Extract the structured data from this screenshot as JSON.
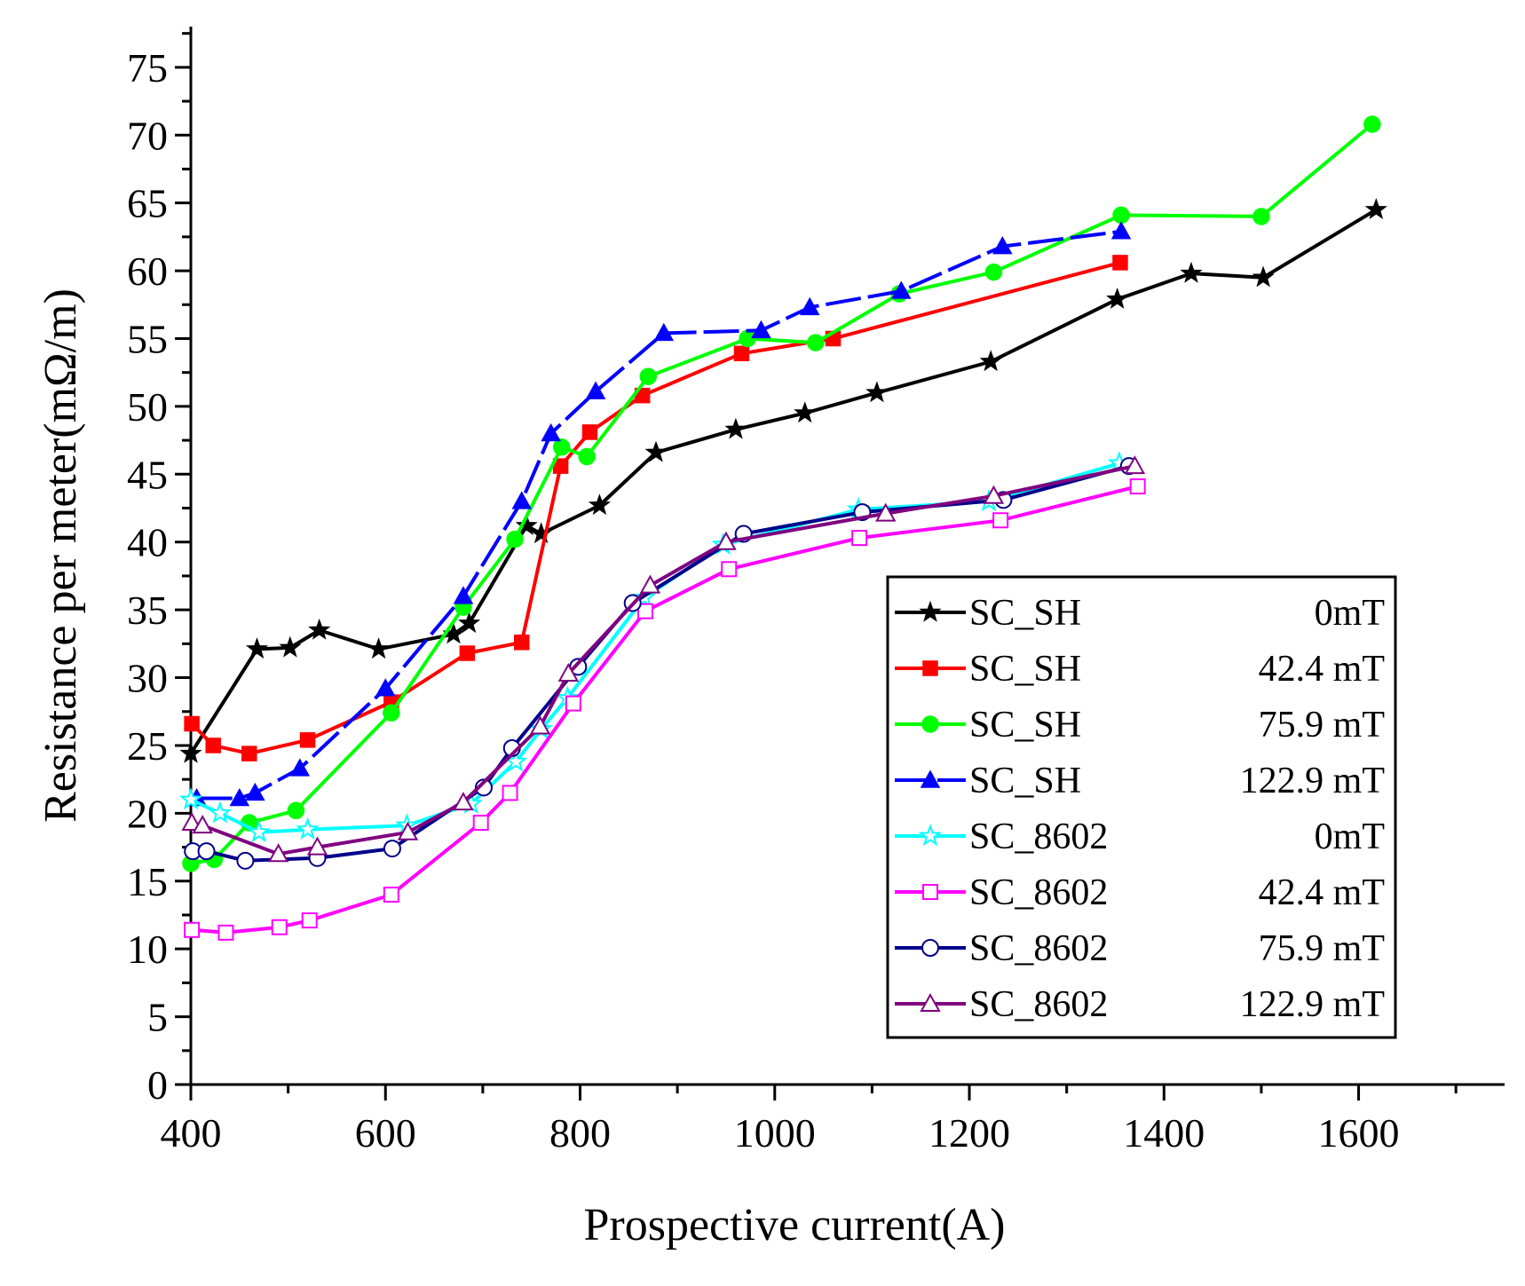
{
  "chart_data": {
    "type": "line",
    "title": "",
    "xlabel": "Prospective current(A)",
    "ylabel": "Resistance per meter(mΩ/m)",
    "xlim": [
      400,
      1750
    ],
    "ylim": [
      0,
      78
    ],
    "xticks": [
      400,
      600,
      800,
      1000,
      1200,
      1400,
      1600
    ],
    "yticks": [
      0,
      5,
      10,
      15,
      20,
      25,
      30,
      35,
      40,
      45,
      50,
      55,
      60,
      65,
      70,
      75
    ],
    "xtick_labels": [
      "400",
      "600",
      "800",
      "1000",
      "1200",
      "1400",
      "1600"
    ],
    "ytick_labels": [
      "0",
      "5",
      "10",
      "15",
      "20",
      "25",
      "30",
      "35",
      "40",
      "45",
      "50",
      "55",
      "60",
      "65",
      "70",
      "75"
    ],
    "legend_position": "bottom-right",
    "series": [
      {
        "name": "SC_SH",
        "field": "0mT",
        "color": "#000000",
        "marker": "star",
        "filled": true,
        "dash": false,
        "x": [
          400,
          468,
          502,
          532,
          593,
          670,
          686,
          745,
          760,
          820,
          878,
          960,
          1031,
          1105,
          1222,
          1352,
          1428,
          1502,
          1618
        ],
        "y": [
          24.4,
          32.1,
          32.2,
          33.5,
          32.1,
          33.2,
          34.0,
          41.2,
          40.6,
          42.7,
          46.6,
          48.3,
          49.5,
          51.0,
          53.3,
          57.9,
          59.8,
          59.5,
          64.5
        ]
      },
      {
        "name": "SC_SH",
        "field": "42.4 mT",
        "color": "#ff0000",
        "marker": "square",
        "filled": true,
        "dash": false,
        "x": [
          401,
          423,
          460,
          520,
          606,
          684,
          740,
          780,
          810,
          864,
          966,
          1060,
          1355
        ],
        "y": [
          26.6,
          25.0,
          24.4,
          25.4,
          28.2,
          31.8,
          32.6,
          45.6,
          48.1,
          50.8,
          53.9,
          55.0,
          60.6
        ]
      },
      {
        "name": "SC_SH",
        "field": "75.9 mT",
        "color": "#00ff00",
        "marker": "circle",
        "filled": true,
        "dash": false,
        "x": [
          400,
          424,
          460,
          508,
          606,
          680,
          733,
          781,
          807,
          870,
          972,
          1042,
          1128,
          1225,
          1356,
          1500,
          1614
        ],
        "y": [
          16.3,
          16.6,
          19.3,
          20.2,
          27.4,
          35.2,
          40.2,
          47.0,
          46.3,
          52.2,
          55.0,
          54.7,
          58.3,
          59.9,
          64.1,
          64.0,
          70.8
        ]
      },
      {
        "name": "SC_SH",
        "field": "122.9 mT",
        "color": "#0000ff",
        "marker": "triangle",
        "filled": true,
        "dash": true,
        "x": [
          406,
          450,
          466,
          512,
          600,
          680,
          740,
          770,
          816,
          886,
          986,
          1036,
          1130,
          1234,
          1356
        ],
        "y": [
          21.1,
          21.1,
          21.5,
          23.3,
          29.2,
          36.0,
          43.0,
          48.0,
          51.1,
          55.4,
          55.6,
          57.3,
          58.5,
          61.8,
          62.9
        ]
      },
      {
        "name": "SC_8602",
        "field": "0mT",
        "color": "#00ffff",
        "marker": "star",
        "filled": false,
        "dash": false,
        "x": [
          400,
          430,
          470,
          520,
          622,
          688,
          734,
          760,
          787,
          866,
          947,
          1086,
          1220,
          1354
        ],
        "y": [
          21.0,
          20.0,
          18.6,
          18.8,
          19.1,
          20.7,
          23.8,
          26.2,
          28.5,
          35.9,
          39.8,
          42.4,
          43.0,
          45.8
        ]
      },
      {
        "name": "SC_8602",
        "field": "42.4 mT",
        "color": "#ff00ff",
        "marker": "square",
        "filled": false,
        "dash": false,
        "x": [
          401,
          436,
          491,
          522,
          606,
          698,
          728,
          793,
          867,
          953,
          1087,
          1232,
          1373
        ],
        "y": [
          11.4,
          11.2,
          11.6,
          12.1,
          14.0,
          19.3,
          21.5,
          28.1,
          34.9,
          38.0,
          40.3,
          41.6,
          44.1
        ]
      },
      {
        "name": "SC_8602",
        "field": "75.9 mT",
        "color": "#00008b",
        "marker": "circle",
        "filled": false,
        "dash": false,
        "x": [
          402,
          416,
          456,
          530,
          607,
          701,
          730,
          798,
          854,
          968,
          1090,
          1235,
          1364
        ],
        "y": [
          17.2,
          17.2,
          16.5,
          16.7,
          17.4,
          21.9,
          24.8,
          30.8,
          35.5,
          40.6,
          42.2,
          43.1,
          45.6
        ]
      },
      {
        "name": "SC_8602",
        "field": "122.9 mT",
        "color": "#800080",
        "marker": "triangle",
        "filled": false,
        "dash": false,
        "x": [
          401,
          412,
          490,
          530,
          623,
          680,
          759,
          788,
          872,
          950,
          1114,
          1225,
          1370
        ],
        "y": [
          19.3,
          19.1,
          17.0,
          17.5,
          18.6,
          20.8,
          26.4,
          30.3,
          36.8,
          40.0,
          42.1,
          43.4,
          45.6
        ]
      }
    ]
  }
}
